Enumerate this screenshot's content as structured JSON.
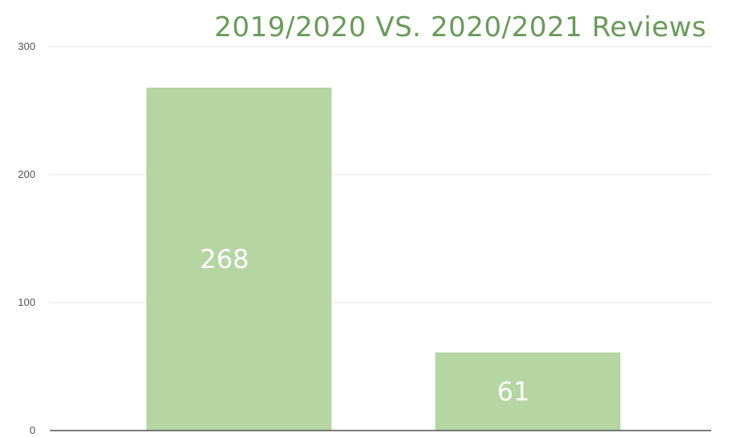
{
  "chart_data": {
    "type": "bar",
    "title": "2019/2020 VS. 2020/2021 Reviews",
    "categories": [
      "",
      ""
    ],
    "values": [
      268,
      61
    ],
    "data_labels": [
      "268",
      "61"
    ],
    "ylim": [
      0,
      300
    ],
    "yticks": [
      "0",
      "100",
      "200",
      "300"
    ],
    "xlabel": "",
    "ylabel": "",
    "grid": true,
    "legend": "none",
    "colors": {
      "bar": "#b5d5a2",
      "title": "#6a9a5b",
      "grid": "#e3e3e3",
      "axis": "#555555"
    }
  }
}
